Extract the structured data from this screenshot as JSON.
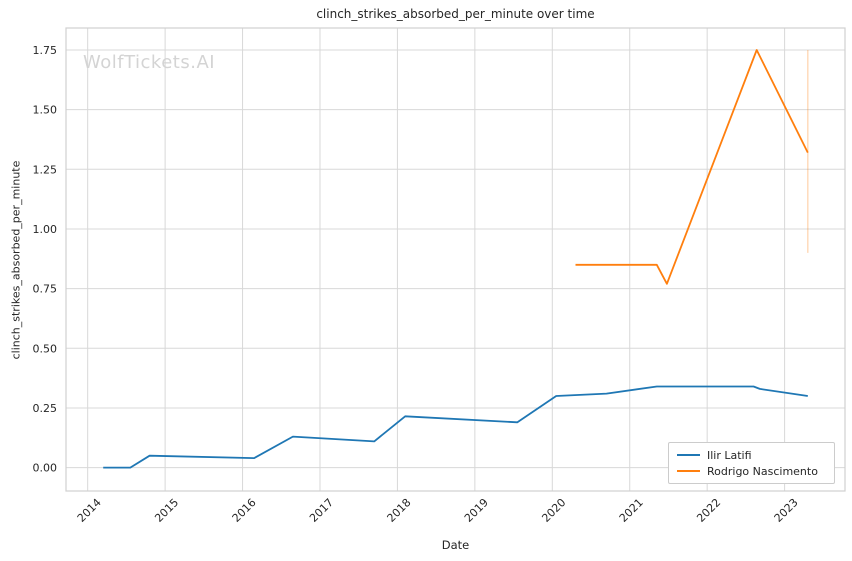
{
  "figure": {
    "watermark": "WolfTickets.AI"
  },
  "chart_data": {
    "type": "line",
    "title": "clinch_strikes_absorbed_per_minute over time",
    "xlabel": "Date",
    "ylabel": "clinch_strikes_absorbed_per_minute",
    "grid": true,
    "background": "#ffffff",
    "grid_color": "#d8d8d8",
    "spine_color": "#d0d0d0",
    "tick_label_color": "#262626",
    "xlim": [
      2013.72,
      2023.78
    ],
    "ylim": [
      -0.098,
      1.842
    ],
    "x_ticks": [
      {
        "v": 2014,
        "label": "2014"
      },
      {
        "v": 2015,
        "label": "2015"
      },
      {
        "v": 2016,
        "label": "2016"
      },
      {
        "v": 2017,
        "label": "2017"
      },
      {
        "v": 2018,
        "label": "2018"
      },
      {
        "v": 2019,
        "label": "2019"
      },
      {
        "v": 2020,
        "label": "2020"
      },
      {
        "v": 2021,
        "label": "2021"
      },
      {
        "v": 2022,
        "label": "2022"
      },
      {
        "v": 2023,
        "label": "2023"
      }
    ],
    "y_ticks": [
      {
        "v": 0.0,
        "label": "0.00"
      },
      {
        "v": 0.25,
        "label": "0.25"
      },
      {
        "v": 0.5,
        "label": "0.50"
      },
      {
        "v": 0.75,
        "label": "0.75"
      },
      {
        "v": 1.0,
        "label": "1.00"
      },
      {
        "v": 1.25,
        "label": "1.25"
      },
      {
        "v": 1.5,
        "label": "1.50"
      },
      {
        "v": 1.75,
        "label": "1.75"
      }
    ],
    "series": [
      {
        "name": "Ilir Latifi",
        "color": "#1f77b4",
        "points": [
          [
            2014.2,
            0.0
          ],
          [
            2014.55,
            0.0
          ],
          [
            2014.8,
            0.05
          ],
          [
            2016.15,
            0.04
          ],
          [
            2016.65,
            0.13
          ],
          [
            2017.7,
            0.11
          ],
          [
            2018.1,
            0.215
          ],
          [
            2019.55,
            0.19
          ],
          [
            2020.05,
            0.3
          ],
          [
            2020.7,
            0.31
          ],
          [
            2021.35,
            0.34
          ],
          [
            2022.6,
            0.34
          ],
          [
            2022.68,
            0.33
          ],
          [
            2023.3,
            0.3
          ]
        ]
      },
      {
        "name": "Rodrigo Nascimento",
        "color": "#ff7f0e",
        "points": [
          [
            2020.3,
            0.85
          ],
          [
            2021.35,
            0.85
          ],
          [
            2021.48,
            0.77
          ],
          [
            2022.64,
            1.75
          ],
          [
            2023.3,
            1.32
          ]
        ]
      }
    ],
    "error_bars": [
      {
        "series": "Rodrigo Nascimento",
        "x": 2023.3,
        "y_min": 0.9,
        "y_max": 1.75,
        "color": "#ff7f0e",
        "opacity": 0.35
      }
    ],
    "legend": {
      "position": "lower right",
      "entries": [
        {
          "label": "Ilir Latifi",
          "color": "#1f77b4"
        },
        {
          "label": "Rodrigo Nascimento",
          "color": "#ff7f0e"
        }
      ]
    }
  }
}
